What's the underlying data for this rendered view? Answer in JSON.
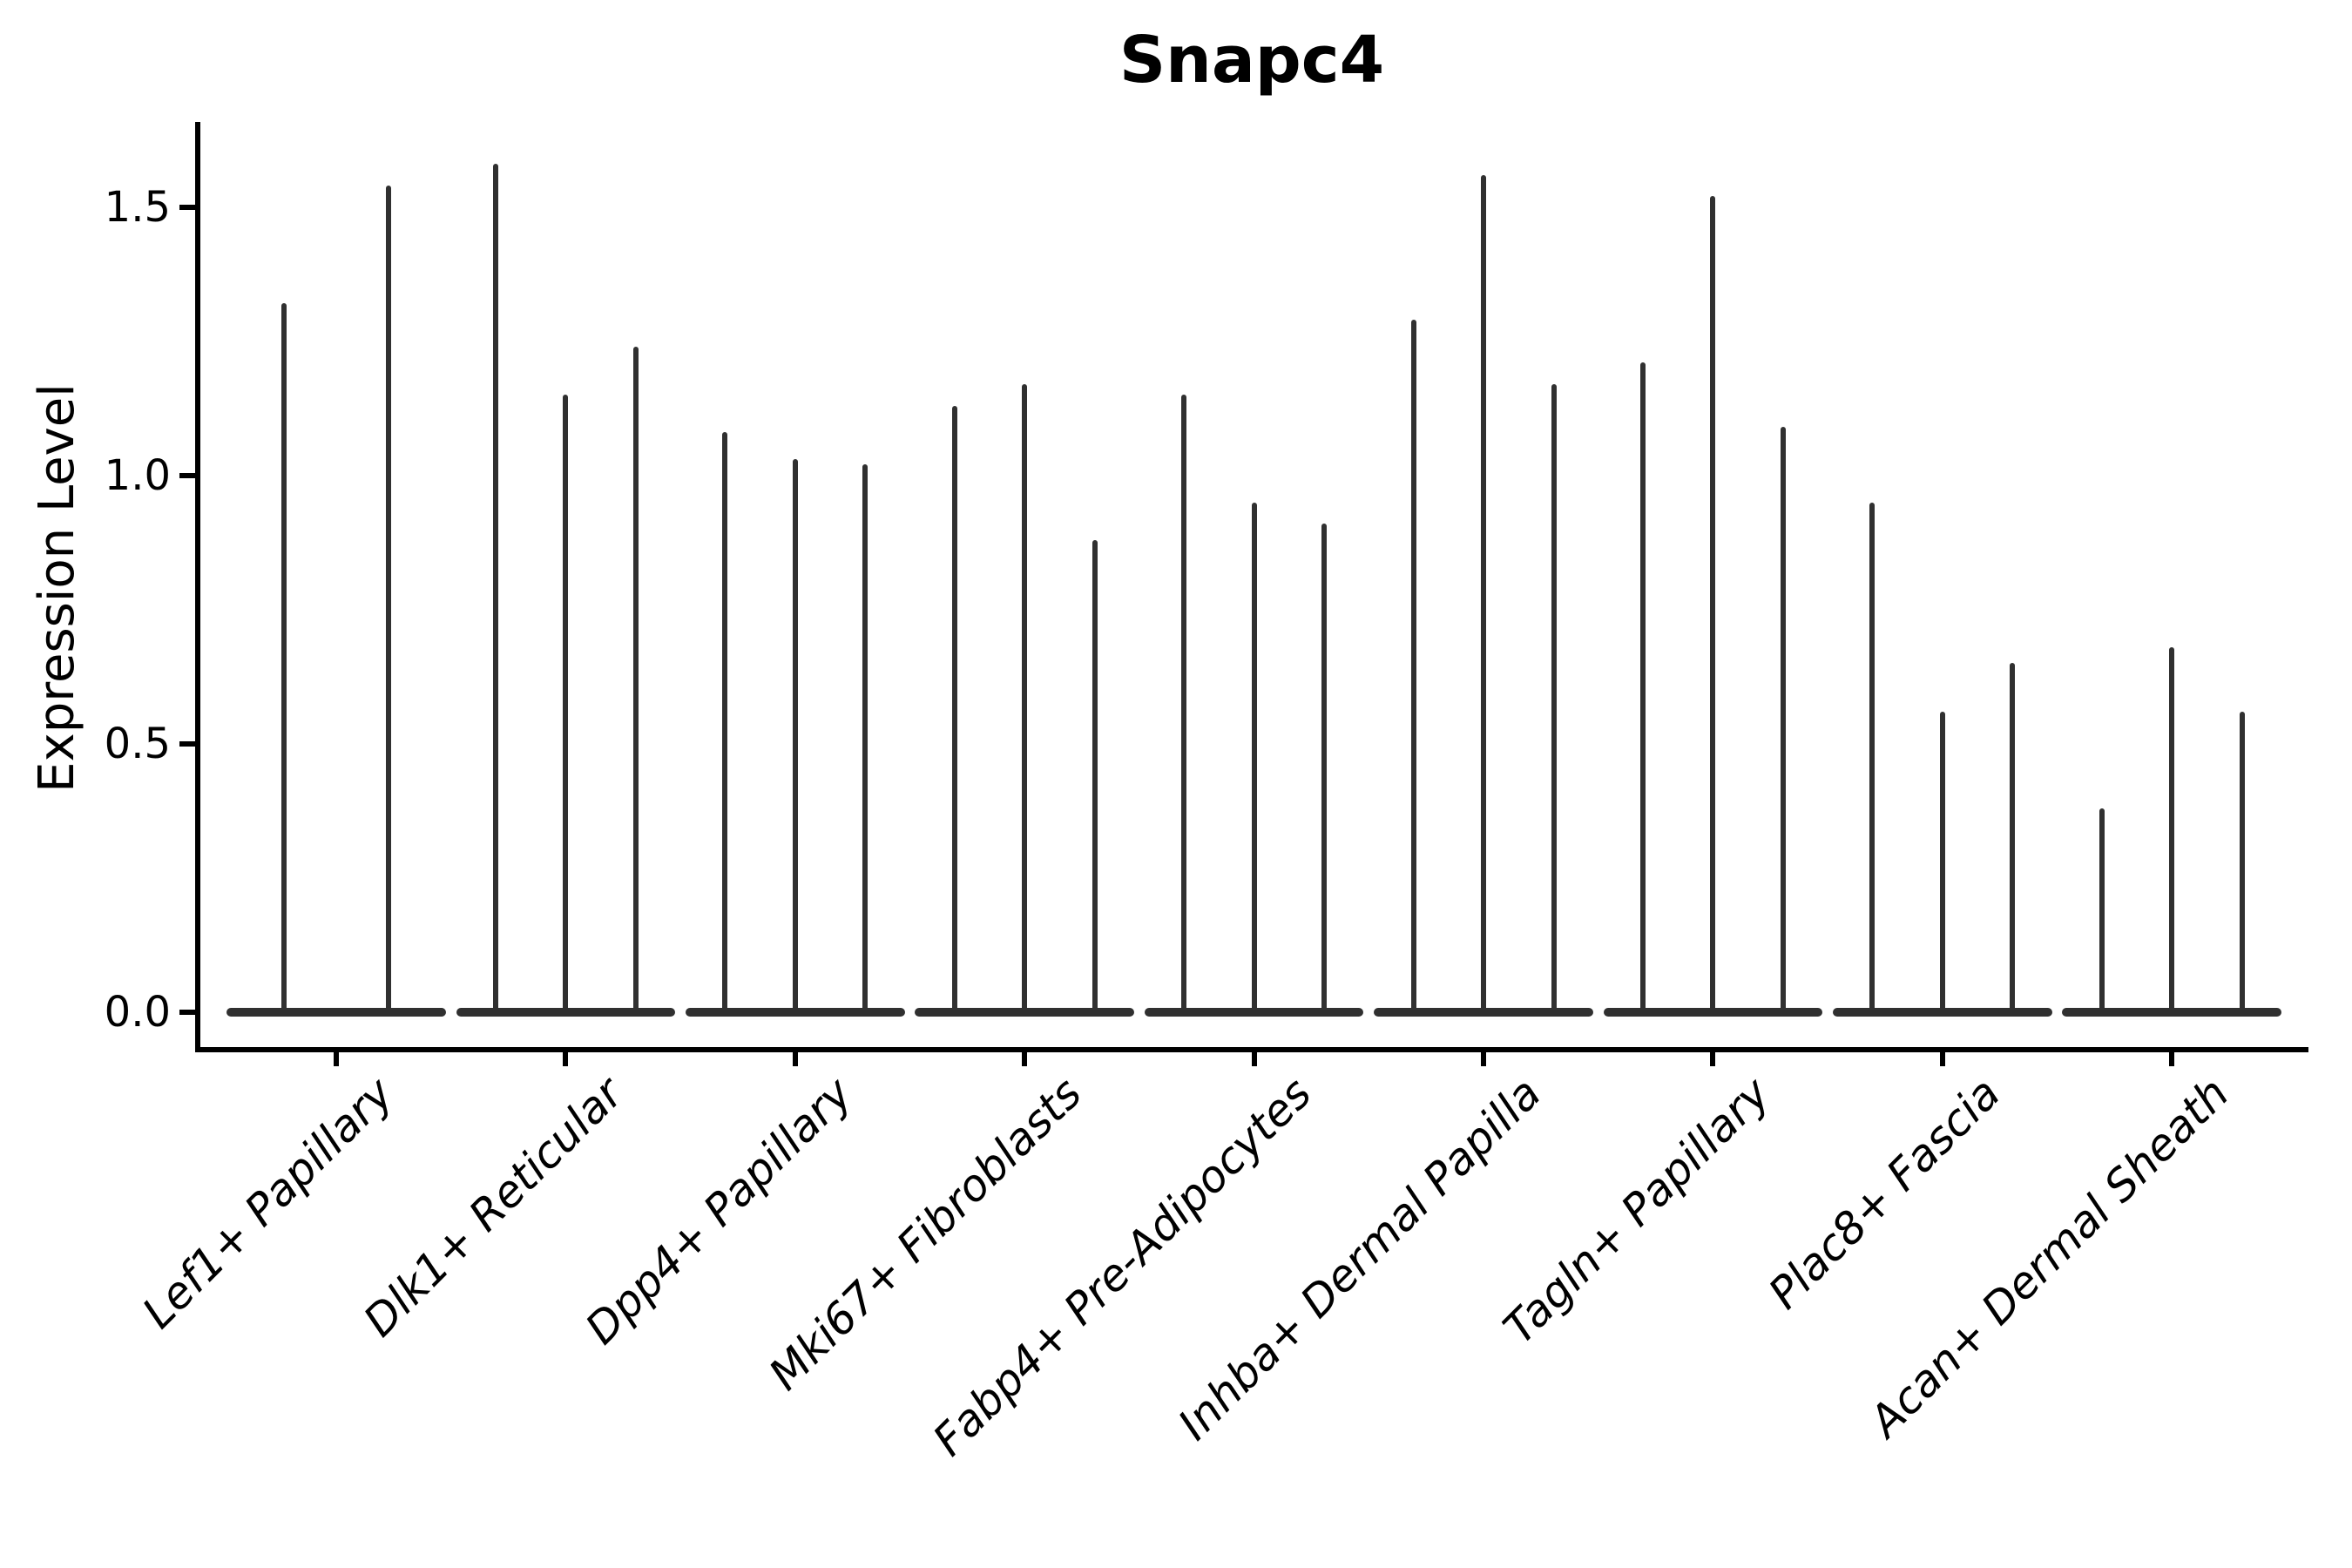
{
  "title": "Snapc4",
  "colors": {
    "background": "#ffffff",
    "violin": "#303030",
    "axis": "#000000",
    "text": "#000000"
  },
  "chart_data": {
    "type": "violin",
    "title": "Snapc4",
    "xlabel": "",
    "ylabel": "Expression Level",
    "ylim": [
      -0.07,
      1.66
    ],
    "yticks": [
      0.0,
      0.5,
      1.0,
      1.5
    ],
    "ytick_labels": [
      "0.0",
      "0.5",
      "1.0",
      "1.5"
    ],
    "grid": false,
    "legend_position": "none",
    "xtick_rotation_deg": 45,
    "xtick_style": "italic",
    "categories": [
      "Lef1+ Papillary",
      "Dlk1+ Reticular",
      "Dpp4+ Papillary",
      "Mki67+ Fibroblasts",
      "Fabp4+ Pre-Adipocytes",
      "Inhba+ Dermal Papilla",
      "Tagln+ Papillary",
      "Plac8+ Fascia",
      "Acan+ Dermal Sheath"
    ],
    "groups": [
      {
        "label": "Lef1+ Papillary",
        "violin_maxima": [
          1.32,
          1.54
        ]
      },
      {
        "label": "Dlk1+ Reticular",
        "violin_maxima": [
          1.58,
          1.15,
          1.24
        ]
      },
      {
        "label": "Dpp4+ Papillary",
        "violin_maxima": [
          1.08,
          1.03,
          1.02
        ]
      },
      {
        "label": "Mki67+ Fibroblasts",
        "violin_maxima": [
          1.13,
          1.17,
          0.88
        ]
      },
      {
        "label": "Fabp4+ Pre-Adipocytes",
        "violin_maxima": [
          1.15,
          0.95,
          0.91
        ]
      },
      {
        "label": "Inhba+ Dermal Papilla",
        "violin_maxima": [
          1.29,
          1.56,
          1.17
        ]
      },
      {
        "label": "Tagln+ Papillary",
        "violin_maxima": [
          1.21,
          1.52,
          1.09
        ]
      },
      {
        "label": "Plac8+ Fascia",
        "violin_maxima": [
          0.95,
          0.56,
          0.65
        ]
      },
      {
        "label": "Acan+ Dermal Sheath",
        "violin_maxima": [
          0.38,
          0.68,
          0.56
        ]
      }
    ],
    "violin_description": "Each violin is a needle shape: a wide flat base at expression 0 with a thin spike rising to the listed maximum expression value."
  }
}
